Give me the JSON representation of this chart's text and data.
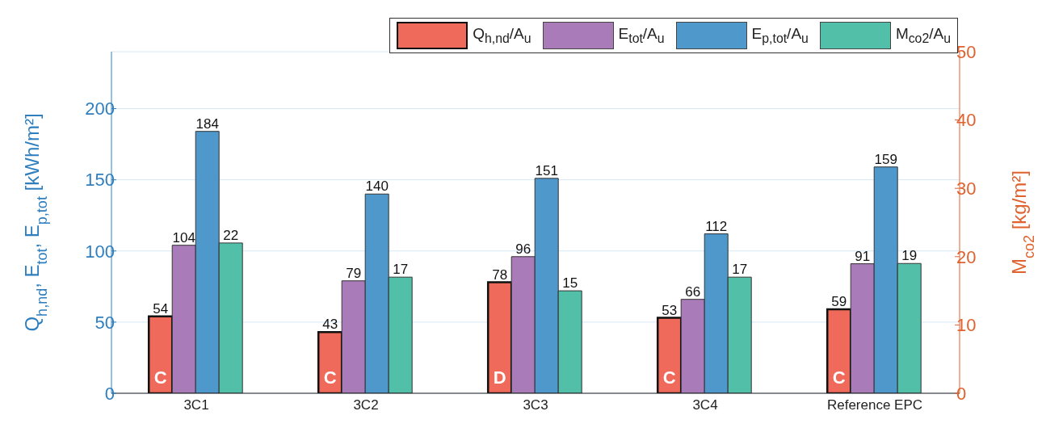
{
  "chart_data": {
    "type": "bar",
    "categories": [
      "3C1",
      "3C2",
      "3C3",
      "3C4",
      "Reference EPC"
    ],
    "series": [
      {
        "name": "Q$_{h,nd}$/A$_{u}$",
        "color": "#ef6a5a",
        "values": [
          54,
          43,
          78,
          53,
          59
        ]
      },
      {
        "name": "E$_{tot}$/A$_{u}$",
        "color": "#a97bb8",
        "values": [
          104,
          79,
          96,
          66,
          91
        ]
      },
      {
        "name": "E$_{p,tot}$/A$_{u}$",
        "color": "#4f98cb",
        "values": [
          184,
          140,
          151,
          112,
          159
        ]
      },
      {
        "name": "M$_{co2}$/A$_{u}$",
        "color": "#52c0a8",
        "values": [
          22,
          17,
          15,
          17,
          19
        ],
        "axis": "y2"
      }
    ],
    "ylabel": "Q$_{h,nd}$, E$_{tot}$, E$_{p,tot}$ [kWh/m²]",
    "y2label": "M$_{co2}$ [kg/m²]",
    "ylim": [
      0,
      240
    ],
    "yticks": [
      0,
      50,
      100,
      150,
      200
    ],
    "y2lim": [
      0,
      50
    ],
    "y2ticks": [
      0,
      10,
      20,
      30,
      40,
      50
    ],
    "data_labels": true,
    "grid": "y",
    "legend": "top right",
    "annotations": [
      {
        "text": "C",
        "x": "3C1",
        "y": 10
      },
      {
        "text": "C",
        "x": "3C2",
        "y": 10
      },
      {
        "text": "D",
        "x": "3C3",
        "y": 10
      },
      {
        "text": "C",
        "x": "3C4",
        "y": 10
      },
      {
        "text": "C",
        "x": "Reference EPC",
        "y": 10
      }
    ]
  }
}
